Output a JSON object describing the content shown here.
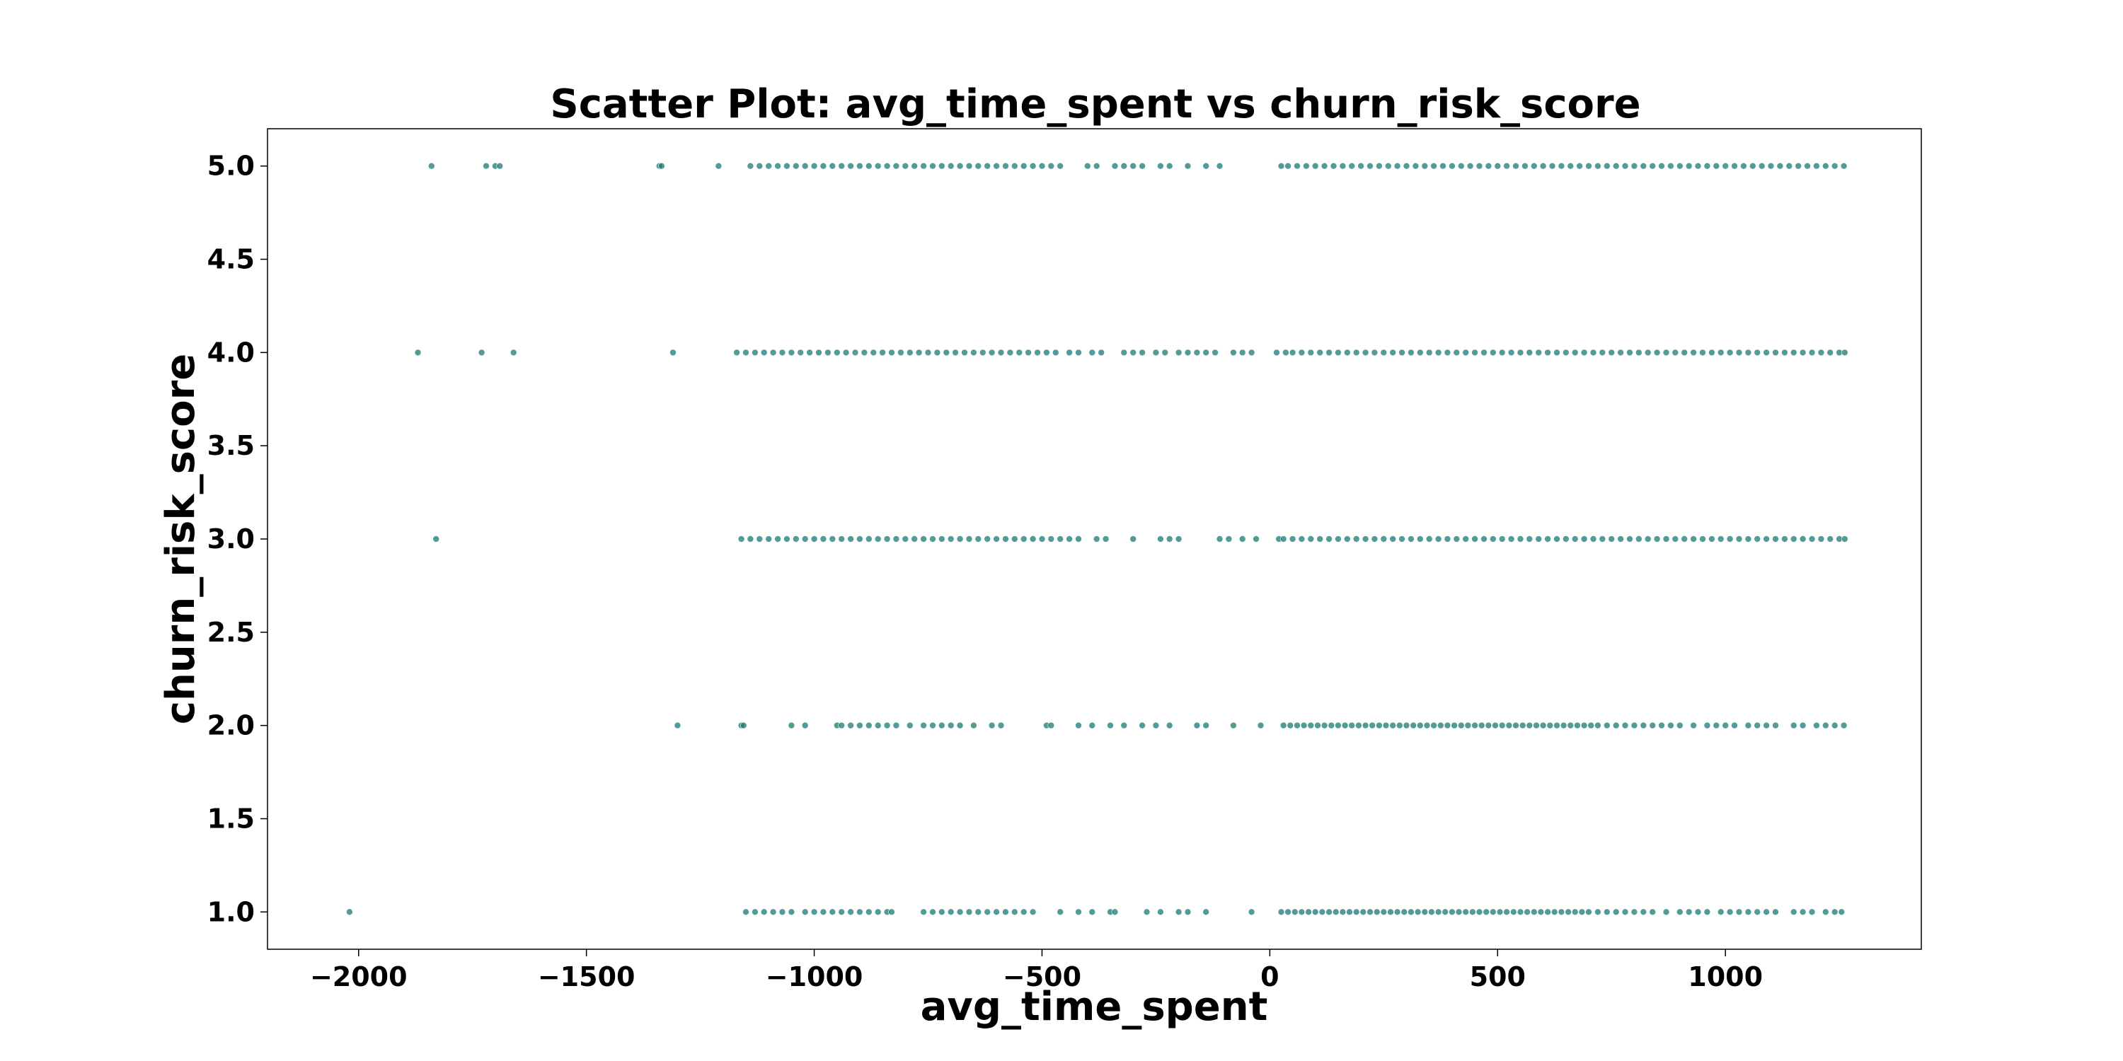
{
  "chart_data": {
    "type": "scatter",
    "title": "Scatter Plot: avg_time_spent vs churn_risk_score",
    "xlabel": "avg_time_spent",
    "ylabel": "churn_risk_score",
    "xlim": [
      -2200,
      1430
    ],
    "ylim": [
      0.8,
      5.2
    ],
    "x_ticks": [
      -2000,
      -1500,
      -1000,
      -500,
      0,
      500,
      1000
    ],
    "x_tick_labels": [
      "−2000",
      "−1500",
      "−1000",
      "−500",
      "0",
      "500",
      "1000"
    ],
    "y_ticks": [
      1.0,
      1.5,
      2.0,
      2.5,
      3.0,
      3.5,
      4.0,
      4.5,
      5.0
    ],
    "y_tick_labels": [
      "1.0",
      "1.5",
      "2.0",
      "2.5",
      "3.0",
      "3.5",
      "4.0",
      "4.5",
      "5.0"
    ],
    "grid": false,
    "marker_color": "#1b7a75",
    "series": [
      {
        "y": 5.0,
        "x": [
          -1840,
          -1720,
          -1700,
          -1690,
          -1340,
          -1335,
          -1210,
          -1140,
          -1120,
          -1100,
          -1080,
          -1060,
          -1040,
          -1020,
          -1000,
          -980,
          -960,
          -940,
          -920,
          -900,
          -880,
          -860,
          -840,
          -820,
          -800,
          -780,
          -760,
          -740,
          -720,
          -700,
          -680,
          -660,
          -640,
          -620,
          -600,
          -580,
          -560,
          -540,
          -520,
          -500,
          -480,
          -460,
          -400,
          -380,
          -340,
          -320,
          -300,
          -280,
          -240,
          -220,
          -180,
          -140,
          -110,
          25,
          40,
          60,
          80,
          100,
          120,
          140,
          160,
          180,
          200,
          220,
          240,
          260,
          280,
          300,
          320,
          340,
          360,
          380,
          400,
          420,
          440,
          460,
          480,
          500,
          520,
          540,
          560,
          580,
          600,
          620,
          640,
          660,
          680,
          700,
          720,
          740,
          760,
          780,
          800,
          820,
          840,
          860,
          880,
          900,
          920,
          940,
          960,
          980,
          1000,
          1020,
          1040,
          1060,
          1080,
          1100,
          1120,
          1140,
          1160,
          1180,
          1200,
          1220,
          1240,
          1260
        ]
      },
      {
        "y": 4.0,
        "x": [
          -1870,
          -1730,
          -1660,
          -1310,
          -1170,
          -1150,
          -1130,
          -1110,
          -1090,
          -1070,
          -1050,
          -1030,
          -1010,
          -990,
          -970,
          -950,
          -930,
          -910,
          -890,
          -870,
          -850,
          -830,
          -810,
          -790,
          -770,
          -750,
          -730,
          -710,
          -690,
          -670,
          -650,
          -630,
          -610,
          -590,
          -570,
          -550,
          -530,
          -510,
          -490,
          -470,
          -440,
          -420,
          -390,
          -370,
          -320,
          -300,
          -280,
          -250,
          -230,
          -200,
          -180,
          -160,
          -140,
          -120,
          -80,
          -60,
          -40,
          15,
          35,
          50,
          70,
          90,
          110,
          130,
          150,
          170,
          190,
          210,
          230,
          250,
          270,
          290,
          310,
          330,
          350,
          370,
          390,
          410,
          430,
          450,
          470,
          490,
          510,
          530,
          550,
          570,
          590,
          610,
          630,
          650,
          670,
          690,
          710,
          730,
          750,
          770,
          790,
          810,
          830,
          850,
          870,
          890,
          910,
          930,
          950,
          970,
          990,
          1010,
          1030,
          1050,
          1070,
          1090,
          1110,
          1130,
          1150,
          1170,
          1190,
          1210,
          1230,
          1250,
          1262
        ]
      },
      {
        "y": 3.0,
        "x": [
          -1830,
          -1160,
          -1140,
          -1120,
          -1100,
          -1080,
          -1060,
          -1040,
          -1020,
          -1000,
          -980,
          -960,
          -940,
          -920,
          -900,
          -880,
          -860,
          -840,
          -820,
          -800,
          -780,
          -760,
          -740,
          -720,
          -700,
          -680,
          -660,
          -640,
          -620,
          -600,
          -580,
          -560,
          -540,
          -520,
          -500,
          -480,
          -460,
          -440,
          -420,
          -380,
          -360,
          -300,
          -240,
          -220,
          -200,
          -110,
          -90,
          -60,
          -30,
          20,
          30,
          50,
          70,
          90,
          110,
          130,
          150,
          170,
          190,
          210,
          230,
          250,
          270,
          290,
          310,
          330,
          350,
          370,
          390,
          410,
          430,
          450,
          470,
          490,
          510,
          530,
          550,
          570,
          590,
          610,
          630,
          650,
          670,
          690,
          710,
          730,
          750,
          770,
          790,
          810,
          830,
          850,
          870,
          890,
          910,
          930,
          950,
          970,
          990,
          1010,
          1030,
          1050,
          1070,
          1090,
          1110,
          1130,
          1150,
          1170,
          1190,
          1210,
          1230,
          1250,
          1262
        ]
      },
      {
        "y": 2.0,
        "x": [
          -1300,
          -1160,
          -1155,
          -1050,
          -1020,
          -950,
          -940,
          -920,
          -900,
          -880,
          -860,
          -840,
          -820,
          -790,
          -760,
          -740,
          -720,
          -700,
          -680,
          -650,
          -610,
          -590,
          -490,
          -480,
          -420,
          -390,
          -350,
          -320,
          -280,
          -250,
          -220,
          -160,
          -140,
          -80,
          -20,
          30,
          45,
          60,
          75,
          90,
          105,
          120,
          135,
          150,
          165,
          180,
          195,
          210,
          225,
          240,
          255,
          270,
          285,
          300,
          315,
          330,
          345,
          360,
          375,
          390,
          405,
          420,
          435,
          450,
          465,
          480,
          495,
          510,
          525,
          540,
          555,
          570,
          585,
          600,
          615,
          630,
          645,
          660,
          675,
          690,
          705,
          720,
          740,
          760,
          780,
          800,
          820,
          840,
          860,
          880,
          900,
          930,
          960,
          980,
          1000,
          1020,
          1050,
          1070,
          1090,
          1110,
          1150,
          1170,
          1200,
          1220,
          1240,
          1260
        ]
      },
      {
        "y": 1.0,
        "x": [
          -2020,
          -1150,
          -1130,
          -1110,
          -1090,
          -1070,
          -1050,
          -1020,
          -1000,
          -980,
          -960,
          -940,
          -920,
          -900,
          -880,
          -860,
          -840,
          -830,
          -760,
          -740,
          -720,
          -700,
          -680,
          -660,
          -640,
          -620,
          -600,
          -580,
          -560,
          -540,
          -520,
          -460,
          -420,
          -390,
          -350,
          -340,
          -270,
          -240,
          -200,
          -180,
          -140,
          -40,
          25,
          40,
          55,
          70,
          85,
          100,
          115,
          130,
          145,
          160,
          175,
          190,
          205,
          220,
          235,
          250,
          265,
          280,
          295,
          310,
          325,
          340,
          355,
          370,
          385,
          400,
          415,
          430,
          445,
          460,
          475,
          490,
          505,
          520,
          535,
          550,
          565,
          580,
          595,
          610,
          625,
          640,
          655,
          670,
          685,
          700,
          720,
          740,
          760,
          780,
          800,
          820,
          840,
          870,
          900,
          920,
          940,
          960,
          990,
          1010,
          1030,
          1050,
          1070,
          1090,
          1110,
          1150,
          1170,
          1190,
          1220,
          1240,
          1255
        ]
      }
    ]
  }
}
